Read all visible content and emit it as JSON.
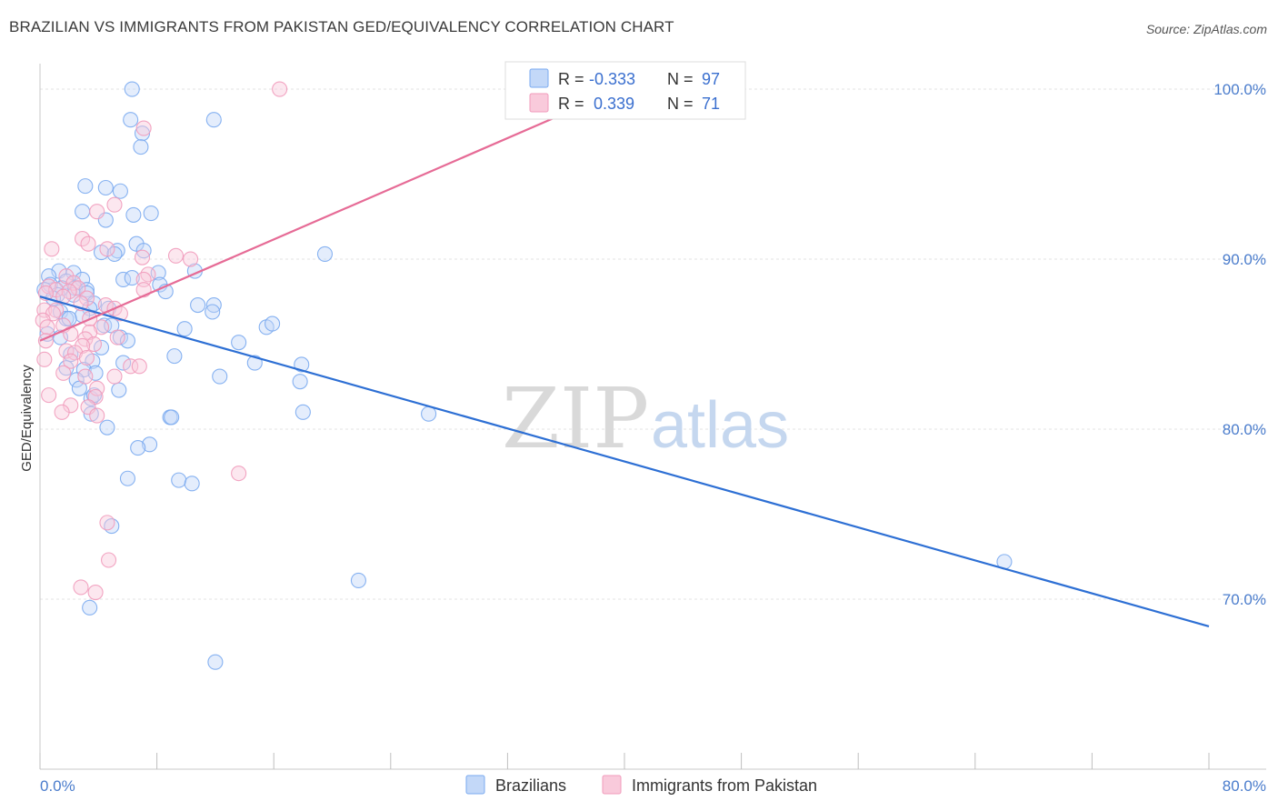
{
  "header": {
    "title": "BRAZILIAN VS IMMIGRANTS FROM PAKISTAN GED/EQUIVALENCY CORRELATION CHART",
    "source": "Source: ZipAtlas.com"
  },
  "watermark": {
    "part1": "ZIP",
    "part2": "atlas"
  },
  "chart_data": {
    "type": "scatter",
    "title": "BRAZILIAN VS IMMIGRANTS FROM PAKISTAN GED/EQUIVALENCY CORRELATION CHART",
    "xlabel": "",
    "ylabel": "GED/Equivalency",
    "xlim": [
      0,
      80
    ],
    "ylim": [
      60,
      101.5
    ],
    "x_tick_labels": {
      "left": "0.0%",
      "right": "80.0%"
    },
    "y_ticks": [
      {
        "value": 100,
        "label": "100.0%"
      },
      {
        "value": 90,
        "label": "90.0%"
      },
      {
        "value": 80,
        "label": "80.0%"
      },
      {
        "value": 70,
        "label": "70.0%"
      }
    ],
    "legend_stats": [
      {
        "r_label": "R =",
        "r_value": "-0.333",
        "n_label": "N =",
        "n_value": "97"
      },
      {
        "r_label": "R =",
        "r_value": " 0.339",
        "n_label": "N =",
        "n_value": "71"
      }
    ],
    "series": [
      {
        "name": "Brazilians",
        "color": "#7aaaf0",
        "fill": "#c3d8f8",
        "trend_color": "#2d6fd4",
        "trend": {
          "x1": 0,
          "y1": 87.8,
          "x2": 80,
          "y2": 68.4
        },
        "points": [
          [
            6.3,
            100
          ],
          [
            6.2,
            98.2
          ],
          [
            11.9,
            98.2
          ],
          [
            7,
            97.4
          ],
          [
            6.9,
            96.6
          ],
          [
            3.1,
            94.3
          ],
          [
            4.5,
            94.2
          ],
          [
            5.5,
            94
          ],
          [
            2.9,
            92.8
          ],
          [
            7.6,
            92.7
          ],
          [
            6.4,
            92.6
          ],
          [
            4.5,
            92.3
          ],
          [
            6.6,
            90.9
          ],
          [
            7.1,
            90.5
          ],
          [
            5.3,
            90.5
          ],
          [
            4.2,
            90.4
          ],
          [
            5.1,
            90.3
          ],
          [
            19.5,
            90.3
          ],
          [
            1.3,
            89.3
          ],
          [
            2.3,
            89.2
          ],
          [
            8.1,
            89.2
          ],
          [
            10.6,
            89.3
          ],
          [
            0.6,
            89
          ],
          [
            1.8,
            88.7
          ],
          [
            2.9,
            88.8
          ],
          [
            5.7,
            88.8
          ],
          [
            6.3,
            88.9
          ],
          [
            8.2,
            88.5
          ],
          [
            0.7,
            88.5
          ],
          [
            1.5,
            88.3
          ],
          [
            2.4,
            88.3
          ],
          [
            3.2,
            88.2
          ],
          [
            0.3,
            88.2
          ],
          [
            8.6,
            88.1
          ],
          [
            1.2,
            87.9
          ],
          [
            2.3,
            87.9
          ],
          [
            3.2,
            88
          ],
          [
            0.9,
            87.7
          ],
          [
            3.7,
            87.4
          ],
          [
            10.8,
            87.3
          ],
          [
            11.9,
            87.3
          ],
          [
            3.4,
            87.1
          ],
          [
            4.7,
            87.1
          ],
          [
            11.8,
            86.9
          ],
          [
            1.4,
            86.9
          ],
          [
            2.9,
            86.7
          ],
          [
            1.8,
            86.5
          ],
          [
            2,
            86.5
          ],
          [
            4.4,
            86.1
          ],
          [
            4.9,
            86.1
          ],
          [
            9.9,
            85.9
          ],
          [
            15.5,
            86
          ],
          [
            15.9,
            86.2
          ],
          [
            0.5,
            85.6
          ],
          [
            1.4,
            85.4
          ],
          [
            5.5,
            85.4
          ],
          [
            6,
            85.2
          ],
          [
            13.6,
            85.1
          ],
          [
            4.2,
            84.8
          ],
          [
            2.1,
            84.4
          ],
          [
            9.2,
            84.3
          ],
          [
            3.6,
            84
          ],
          [
            5.7,
            83.9
          ],
          [
            14.7,
            83.9
          ],
          [
            17.9,
            83.8
          ],
          [
            1.8,
            83.6
          ],
          [
            3,
            83.5
          ],
          [
            3.8,
            83.3
          ],
          [
            12.3,
            83.1
          ],
          [
            17.8,
            82.8
          ],
          [
            2.5,
            82.9
          ],
          [
            2.7,
            82.4
          ],
          [
            5.4,
            82.3
          ],
          [
            3.5,
            81.8
          ],
          [
            3.7,
            82
          ],
          [
            18,
            81
          ],
          [
            26.6,
            80.9
          ],
          [
            3.5,
            80.9
          ],
          [
            8.9,
            80.7
          ],
          [
            9,
            80.7
          ],
          [
            4.6,
            80.1
          ],
          [
            7.5,
            79.1
          ],
          [
            6.7,
            78.9
          ],
          [
            6,
            77.1
          ],
          [
            9.5,
            77
          ],
          [
            10.4,
            76.8
          ],
          [
            4.9,
            74.3
          ],
          [
            21.8,
            71.1
          ],
          [
            3.4,
            69.5
          ],
          [
            12,
            66.3
          ],
          [
            66,
            72.2
          ]
        ]
      },
      {
        "name": "Immigrants from Pakistan",
        "color": "#f19bbb",
        "fill": "#f9cadb",
        "trend_color": "#e66b96",
        "trend": {
          "x1": 0,
          "y1": 85.2,
          "x2": 40,
          "y2": 100.1
        },
        "points": [
          [
            16.4,
            100
          ],
          [
            7.1,
            97.7
          ],
          [
            5.1,
            93.2
          ],
          [
            3.9,
            92.8
          ],
          [
            2.9,
            91.2
          ],
          [
            3.3,
            90.9
          ],
          [
            0.8,
            90.6
          ],
          [
            4.6,
            90.6
          ],
          [
            7,
            90.1
          ],
          [
            9.3,
            90.2
          ],
          [
            10.3,
            90
          ],
          [
            7.4,
            89.1
          ],
          [
            1.8,
            89
          ],
          [
            7.1,
            88.8
          ],
          [
            2.3,
            88.6
          ],
          [
            0.6,
            88.4
          ],
          [
            1.1,
            88.2
          ],
          [
            2.6,
            88.3
          ],
          [
            2,
            88.1
          ],
          [
            7.1,
            88.2
          ],
          [
            0.4,
            88
          ],
          [
            1.6,
            87.8
          ],
          [
            3.2,
            87.7
          ],
          [
            2.8,
            87.4
          ],
          [
            4.5,
            87.3
          ],
          [
            5.1,
            87.1
          ],
          [
            0.3,
            87
          ],
          [
            1.1,
            87
          ],
          [
            0.9,
            86.8
          ],
          [
            3.4,
            86.5
          ],
          [
            5.5,
            86.8
          ],
          [
            0.2,
            86.4
          ],
          [
            0.5,
            86
          ],
          [
            1.6,
            86.1
          ],
          [
            4.2,
            86
          ],
          [
            3.4,
            85.7
          ],
          [
            2.1,
            85.6
          ],
          [
            3.1,
            85.3
          ],
          [
            0.4,
            85.2
          ],
          [
            5.3,
            85.4
          ],
          [
            3.7,
            85
          ],
          [
            2.9,
            84.9
          ],
          [
            1.8,
            84.6
          ],
          [
            2.4,
            84.5
          ],
          [
            3.2,
            84.2
          ],
          [
            0.3,
            84.1
          ],
          [
            2.1,
            84
          ],
          [
            6.2,
            83.7
          ],
          [
            6.8,
            83.7
          ],
          [
            1.6,
            83.3
          ],
          [
            3.1,
            83.1
          ],
          [
            5.1,
            83.1
          ],
          [
            3.9,
            82.4
          ],
          [
            0.6,
            82
          ],
          [
            3.8,
            81.9
          ],
          [
            2.1,
            81.4
          ],
          [
            3.3,
            81.3
          ],
          [
            1.5,
            81
          ],
          [
            3.9,
            80.8
          ],
          [
            13.6,
            77.4
          ],
          [
            4.6,
            74.5
          ],
          [
            4.7,
            72.3
          ],
          [
            2.8,
            70.7
          ],
          [
            3.8,
            70.4
          ]
        ]
      }
    ]
  }
}
